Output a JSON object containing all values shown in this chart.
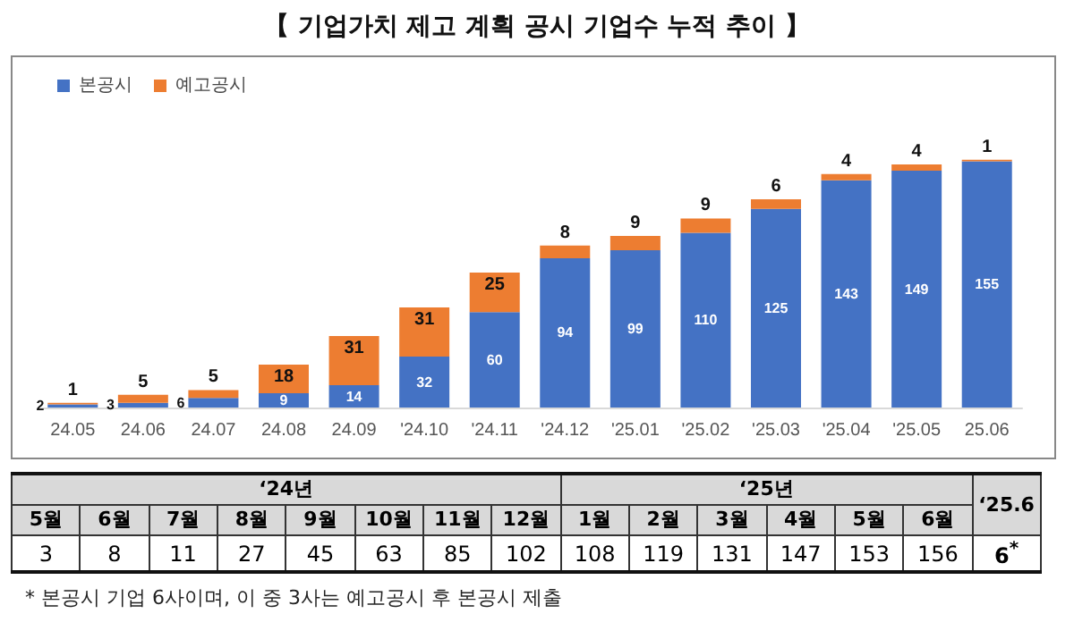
{
  "chart_data": {
    "type": "bar",
    "title": "【 기업가치 제고 계획 공시 기업수 누적 추이 】",
    "categories": [
      "24.05",
      "24.06",
      "24.07",
      "24.08",
      "24.09",
      "'24.10",
      "'24.11",
      "'24.12",
      "'25.01",
      "'25.02",
      "'25.03",
      "'25.04",
      "'25.05",
      "25.06"
    ],
    "series": [
      {
        "name": "본공시",
        "color": "#4472c4",
        "values": [
          2,
          3,
          6,
          9,
          14,
          32,
          60,
          94,
          99,
          110,
          125,
          143,
          149,
          155
        ]
      },
      {
        "name": "예고공시",
        "color": "#ed7d31",
        "values": [
          1,
          5,
          5,
          18,
          31,
          31,
          25,
          8,
          9,
          9,
          6,
          4,
          4,
          1
        ]
      }
    ],
    "stacked": true,
    "data_labels": true,
    "legend": "top left",
    "annotations": [
      "‘24년",
      "‘25년",
      "5월",
      "6월",
      "7월",
      "8월",
      "9월",
      "10월",
      "11월",
      "12월",
      "1월",
      "2월",
      "3월",
      "4월",
      "5월",
      "6월",
      "‘25.6",
      "6$^{*}$",
      "*  본공시 기업 6사이며, 이 중 3사는 예고공시 후 본공시 제출",
      "3",
      "8",
      "11",
      "27",
      "45",
      "63",
      "85",
      "102",
      "108",
      "119",
      "131",
      "147",
      "153",
      "156"
    ]
  }
}
